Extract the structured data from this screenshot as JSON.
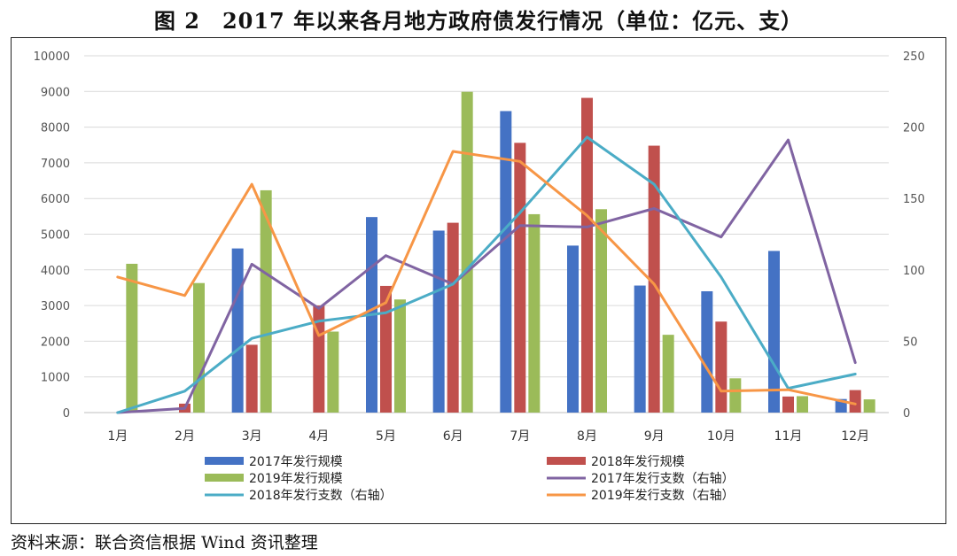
{
  "title": "图 2　2017 年以来各月地方政府债发行情况（单位：亿元、支）",
  "source": "资料来源：联合资信根据 Wind 资讯整理",
  "chart_data": {
    "type": "bar+line",
    "categories": [
      "1月",
      "2月",
      "3月",
      "4月",
      "5月",
      "6月",
      "7月",
      "8月",
      "9月",
      "10月",
      "11月",
      "12月"
    ],
    "left_axis": {
      "ylim": [
        0,
        10000
      ],
      "ticks": [
        "0",
        "1000",
        "2000",
        "3000",
        "4000",
        "5000",
        "6000",
        "7000",
        "8000",
        "9000",
        "10000"
      ]
    },
    "right_axis": {
      "ylim": [
        0,
        250
      ],
      "ticks": [
        "0",
        "50",
        "100",
        "150",
        "200",
        "250"
      ]
    },
    "bar_series": [
      {
        "name": "2017年发行规模",
        "color": "#4472C4",
        "values": [
          0,
          0,
          4600,
          0,
          5480,
          5100,
          8450,
          4680,
          3560,
          3400,
          4530,
          380
        ]
      },
      {
        "name": "2018年发行规模",
        "color": "#C0504D",
        "values": [
          0,
          250,
          1900,
          3000,
          3550,
          5320,
          7560,
          8820,
          7480,
          2550,
          450,
          630
        ]
      },
      {
        "name": "2019年发行规模",
        "color": "#9BBB59",
        "values": [
          4170,
          3630,
          6230,
          2270,
          3170,
          8990,
          5560,
          5700,
          2180,
          960,
          460,
          370
        ]
      }
    ],
    "line_series": [
      {
        "name": "2017年发行支数（右轴）",
        "color": "#8064A2",
        "values": [
          0,
          3,
          104,
          73,
          110,
          90,
          131,
          130,
          143,
          123,
          191,
          35
        ]
      },
      {
        "name": "2018年发行支数（右轴）",
        "color": "#4BACC6",
        "values": [
          0,
          15,
          52,
          64,
          70,
          90,
          140,
          193,
          160,
          95,
          17,
          27
        ]
      },
      {
        "name": "2019年发行支数（右轴）",
        "color": "#F79646",
        "values": [
          95,
          82,
          160,
          54,
          77,
          183,
          176,
          138,
          90,
          15,
          16,
          6
        ]
      }
    ],
    "grid": true,
    "legend_position": "bottom"
  }
}
